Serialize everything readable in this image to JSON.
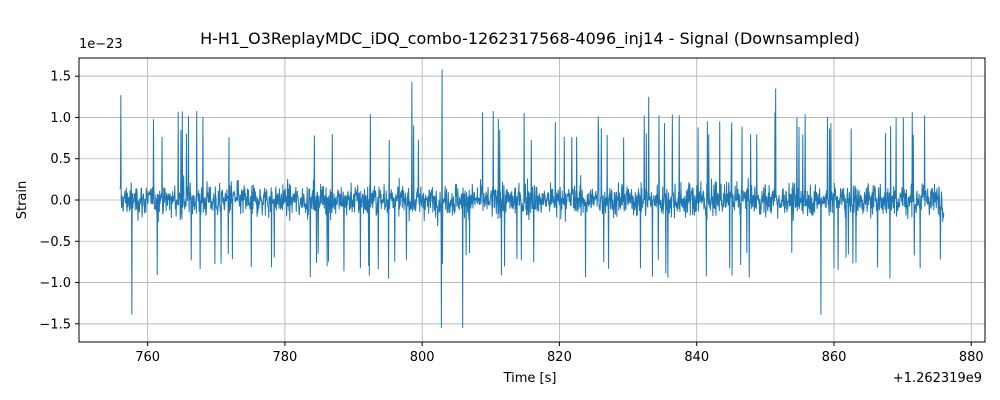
{
  "chart_data": {
    "type": "line",
    "title": "H-H1_O3ReplayMDC_iDQ_combo-1262317568-4096_inj14 - Signal (Downsampled)",
    "xlabel": "Time [s]",
    "ylabel": "Strain",
    "x_offset_label": "+1.262319e9",
    "y_scale_label": "1e−23",
    "xlim": [
      750,
      882
    ],
    "ylim": [
      -1.72,
      1.72
    ],
    "x_ticks": [
      760,
      780,
      800,
      820,
      840,
      860,
      880
    ],
    "x_tick_labels": [
      "760",
      "780",
      "800",
      "820",
      "840",
      "860",
      "880"
    ],
    "y_ticks": [
      -1.5,
      -1.0,
      -0.5,
      0.0,
      0.5,
      1.0,
      1.5
    ],
    "y_tick_labels": [
      "−1.5",
      "−1.0",
      "−0.5",
      "0.0",
      "0.5",
      "1.0",
      "1.5"
    ],
    "grid": true,
    "series": [
      {
        "color": "#1f77b4",
        "x_start": 756,
        "x_end": 876,
        "typical_range": [
          -0.8,
          0.9
        ],
        "peaks": [
          {
            "x": 756.1,
            "y": 1.27
          },
          {
            "x": 757.7,
            "y": -1.39
          },
          {
            "x": 798.5,
            "y": 1.43
          },
          {
            "x": 802.9,
            "y": 1.58
          },
          {
            "x": 802.8,
            "y": -1.55
          },
          {
            "x": 805.9,
            "y": -1.55
          },
          {
            "x": 833.0,
            "y": 1.25
          },
          {
            "x": 851.5,
            "y": 1.35
          },
          {
            "x": 858.1,
            "y": -1.39
          },
          {
            "x": 875.5,
            "y": -0.72
          }
        ]
      }
    ]
  }
}
